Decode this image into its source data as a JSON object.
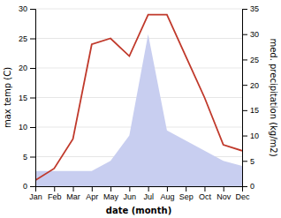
{
  "chart_data": {
    "type": "line",
    "xlabel": "date (month)",
    "ylabel": "max temp (C)",
    "y2label": "med. precipitation (kg/m2)",
    "categories": [
      "Jan",
      "Feb",
      "Mar",
      "Apr",
      "May",
      "Jun",
      "Jul",
      "Aug",
      "Sep",
      "Oct",
      "Nov",
      "Dec"
    ],
    "series": [
      {
        "type": "area",
        "axis": "y2",
        "color": "#c8cef0",
        "values": [
          3,
          3,
          3,
          3,
          5,
          10,
          30,
          11,
          9,
          7,
          5,
          4
        ]
      },
      {
        "type": "line",
        "color": "#c0392b",
        "values": [
          1,
          3,
          8,
          24,
          25,
          22,
          29,
          29,
          22,
          15,
          7,
          6
        ]
      }
    ],
    "ylim": [
      0,
      30
    ],
    "yticks": [
      0,
      5,
      10,
      15,
      20,
      25,
      30
    ],
    "y2lim": [
      0,
      35
    ],
    "y2ticks": [
      0,
      5,
      10,
      15,
      20,
      25,
      30,
      35
    ],
    "grid": true
  }
}
